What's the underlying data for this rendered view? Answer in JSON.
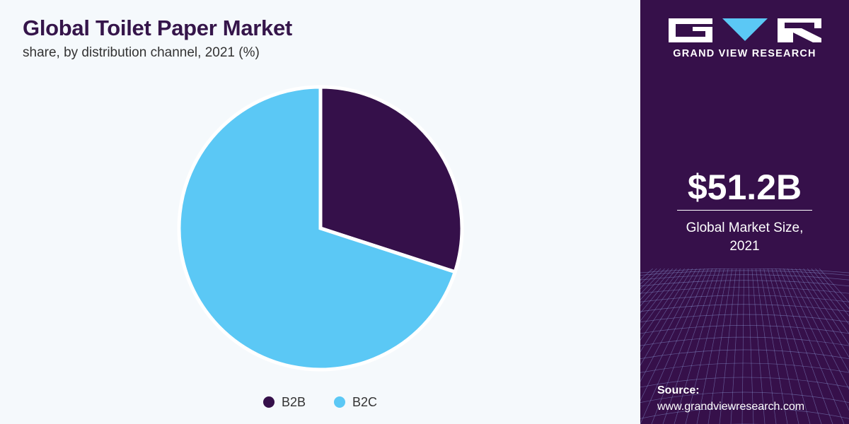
{
  "chart_data": {
    "type": "pie",
    "title": "Global Toilet Paper Market",
    "subtitle": "share, by distribution channel, 2021 (%)",
    "categories": [
      "B2B",
      "B2C"
    ],
    "values": [
      30,
      70
    ],
    "colors": [
      "#35104a",
      "#5bc8f5"
    ],
    "legend_position": "bottom"
  },
  "sidebar": {
    "brand": "GRAND VIEW RESEARCH",
    "logo_icon": "gvr-logo-icon",
    "market_size": "$51.2B",
    "market_size_label_line1": "Global Market Size,",
    "market_size_label_line2": "2021",
    "source_label": "Source:",
    "source_url": "www.grandviewresearch.com"
  },
  "colors": {
    "panel_background": "#36104a",
    "chart_background": "#f5f9fc",
    "title_color": "#35154a"
  }
}
